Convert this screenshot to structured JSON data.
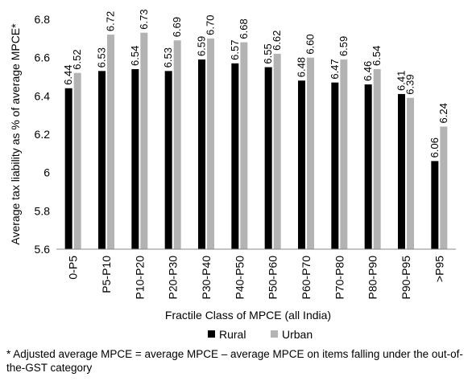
{
  "chart_data": {
    "type": "bar",
    "title": "",
    "xlabel": "Fractile Class of MPCE (all India)",
    "ylabel": "Average tax liability as % of average MPCE*",
    "ylim": [
      5.6,
      6.8
    ],
    "yticks": [
      "5.6",
      "5.8",
      "6",
      "6.2",
      "6.4",
      "6.6",
      "6.8"
    ],
    "grid": false,
    "legend_position": "bottom",
    "categories": [
      "0-P5",
      "P5-P10",
      "P10-P20",
      "P20-P30",
      "P30-P40",
      "P40-P50",
      "P50-P60",
      "P60-P70",
      "P70-P80",
      "P80-P90",
      "P90-P95",
      ">P95"
    ],
    "series": [
      {
        "name": "Rural",
        "color": "#000000",
        "values": [
          6.44,
          6.53,
          6.54,
          6.53,
          6.59,
          6.57,
          6.55,
          6.48,
          6.47,
          6.46,
          6.41,
          6.06
        ],
        "labels": [
          "6.44",
          "6.53",
          "6.54",
          "6.53",
          "6.59",
          "6.57",
          "6.55",
          "6.48",
          "6.47",
          "6.46",
          "6.41",
          "6.06"
        ]
      },
      {
        "name": "Urban",
        "color": "#b3b3b3",
        "values": [
          6.52,
          6.72,
          6.73,
          6.69,
          6.7,
          6.68,
          6.62,
          6.6,
          6.59,
          6.54,
          6.39,
          6.24
        ],
        "labels": [
          "6.52",
          "6.72",
          "6.73",
          "6.69",
          "6.70",
          "6.68",
          "6.62",
          "6.60",
          "6.59",
          "6.54",
          "6.39",
          "6.24"
        ]
      }
    ]
  },
  "footnote": "* Adjusted average MPCE = average MPCE – average MPCE on items falling under the out-of-the-GST category"
}
